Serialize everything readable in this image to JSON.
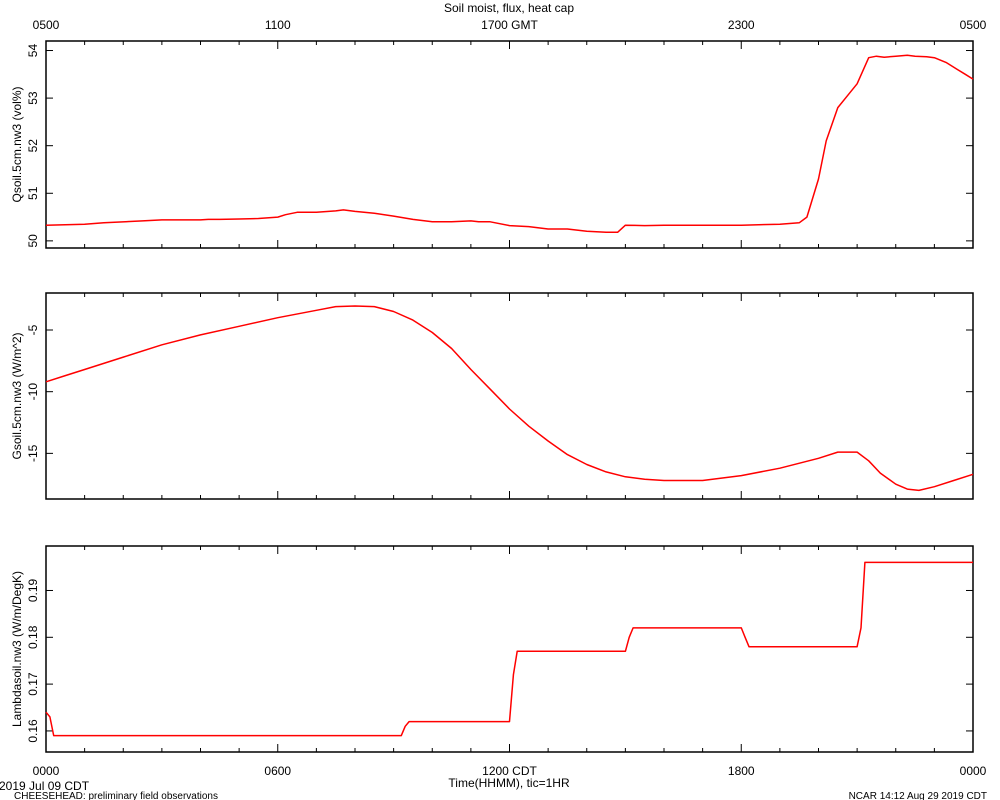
{
  "title": "Soil moist, flux, heat cap",
  "top_axis": {
    "ticks": [
      "0500",
      "1100",
      "1700 GMT",
      "2300",
      "0500"
    ]
  },
  "bottom_axis": {
    "ticks": [
      "0000",
      "0600",
      "1200 CDT",
      "1800",
      "0000"
    ],
    "label": "Time(HHMM), tic=1HR",
    "start_label": "2019 Jul 09 CDT"
  },
  "footer": {
    "left": "CHEESEHEAD: preliminary field observations",
    "right": "NCAR 14:12 Aug 29 2019 CDT"
  },
  "colors": {
    "line": "#ff0000",
    "frame": "#000000"
  },
  "chart_data": [
    {
      "type": "line",
      "ylabel": "Qsoil.5cm.nw3 (vol%)",
      "xlim": [
        0,
        24
      ],
      "ylim": [
        49.85,
        54.2
      ],
      "yticks": [
        50,
        51,
        52,
        53,
        54
      ],
      "ytick_labels": [
        "50",
        "51",
        "52",
        "53",
        "54"
      ],
      "x": [
        0,
        1,
        1.5,
        2.5,
        3,
        4,
        4.2,
        4.5,
        5,
        5.5,
        6,
        6.2,
        6.5,
        7,
        7.5,
        7.7,
        8,
        8.5,
        9,
        9.5,
        10,
        10.5,
        11,
        11.2,
        11.5,
        12,
        12.5,
        13,
        13.5,
        14,
        14.5,
        14.8,
        15,
        15.5,
        16,
        17,
        18,
        19,
        19.5,
        19.7,
        20,
        20.2,
        20.5,
        20.8,
        21,
        21.3,
        21.5,
        21.7,
        22,
        22.3,
        22.5,
        22.8,
        23,
        23.3,
        23.6,
        23.8,
        24
      ],
      "values": [
        50.33,
        50.35,
        50.38,
        50.42,
        50.44,
        50.44,
        50.45,
        50.45,
        50.46,
        50.47,
        50.5,
        50.55,
        50.6,
        50.6,
        50.63,
        50.65,
        50.62,
        50.58,
        50.52,
        50.45,
        50.4,
        50.4,
        50.42,
        50.4,
        50.4,
        50.32,
        50.3,
        50.25,
        50.25,
        50.2,
        50.18,
        50.18,
        50.33,
        50.32,
        50.33,
        50.33,
        50.33,
        50.35,
        50.38,
        50.5,
        51.3,
        52.1,
        52.8,
        53.1,
        53.3,
        53.85,
        53.88,
        53.86,
        53.88,
        53.9,
        53.88,
        53.87,
        53.85,
        53.75,
        53.6,
        53.5,
        53.4
      ]
    },
    {
      "type": "line",
      "ylabel": "Gsoil.5cm.nw3 (W/m^2)",
      "xlim": [
        0,
        24
      ],
      "ylim": [
        -18.7,
        -2
      ],
      "yticks": [
        -15,
        -10,
        -5
      ],
      "ytick_labels": [
        "-15",
        "-10",
        "-5"
      ],
      "x": [
        0,
        0.5,
        1,
        2,
        3,
        4,
        5,
        6,
        7,
        7.5,
        8,
        8.5,
        9,
        9.5,
        10,
        10.5,
        11,
        11.5,
        12,
        12.5,
        13,
        13.5,
        14,
        14.5,
        15,
        15.5,
        16,
        17,
        18,
        19,
        20,
        20.5,
        21,
        21.3,
        21.6,
        22,
        22.3,
        22.6,
        23,
        23.5,
        24
      ],
      "values": [
        -9.2,
        -8.7,
        -8.2,
        -7.2,
        -6.2,
        -5.4,
        -4.7,
        -4.0,
        -3.4,
        -3.1,
        -3.05,
        -3.1,
        -3.5,
        -4.2,
        -5.2,
        -6.5,
        -8.2,
        -9.8,
        -11.4,
        -12.8,
        -14.0,
        -15.1,
        -15.9,
        -16.5,
        -16.9,
        -17.1,
        -17.2,
        -17.2,
        -16.8,
        -16.2,
        -15.4,
        -14.9,
        -14.9,
        -15.6,
        -16.6,
        -17.5,
        -17.9,
        -18.0,
        -17.7,
        -17.2,
        -16.7
      ]
    },
    {
      "type": "line",
      "ylabel": "Lambdasoil.nw3 (W/m/DegK)",
      "xlim": [
        0,
        24
      ],
      "ylim": [
        0.1555,
        0.1995
      ],
      "yticks": [
        0.16,
        0.17,
        0.18,
        0.19
      ],
      "ytick_labels": [
        "0.16",
        "0.17",
        "0.18",
        "0.19"
      ],
      "x": [
        0,
        0.1,
        0.2,
        0.3,
        9.2,
        9.3,
        9.4,
        12,
        12.1,
        12.2,
        15,
        15.1,
        15.2,
        18,
        18.1,
        18.2,
        21,
        21.1,
        21.2,
        24
      ],
      "values": [
        0.164,
        0.163,
        0.159,
        0.159,
        0.159,
        0.161,
        0.162,
        0.162,
        0.172,
        0.177,
        0.177,
        0.18,
        0.182,
        0.182,
        0.18,
        0.178,
        0.178,
        0.182,
        0.196,
        0.196
      ]
    }
  ]
}
